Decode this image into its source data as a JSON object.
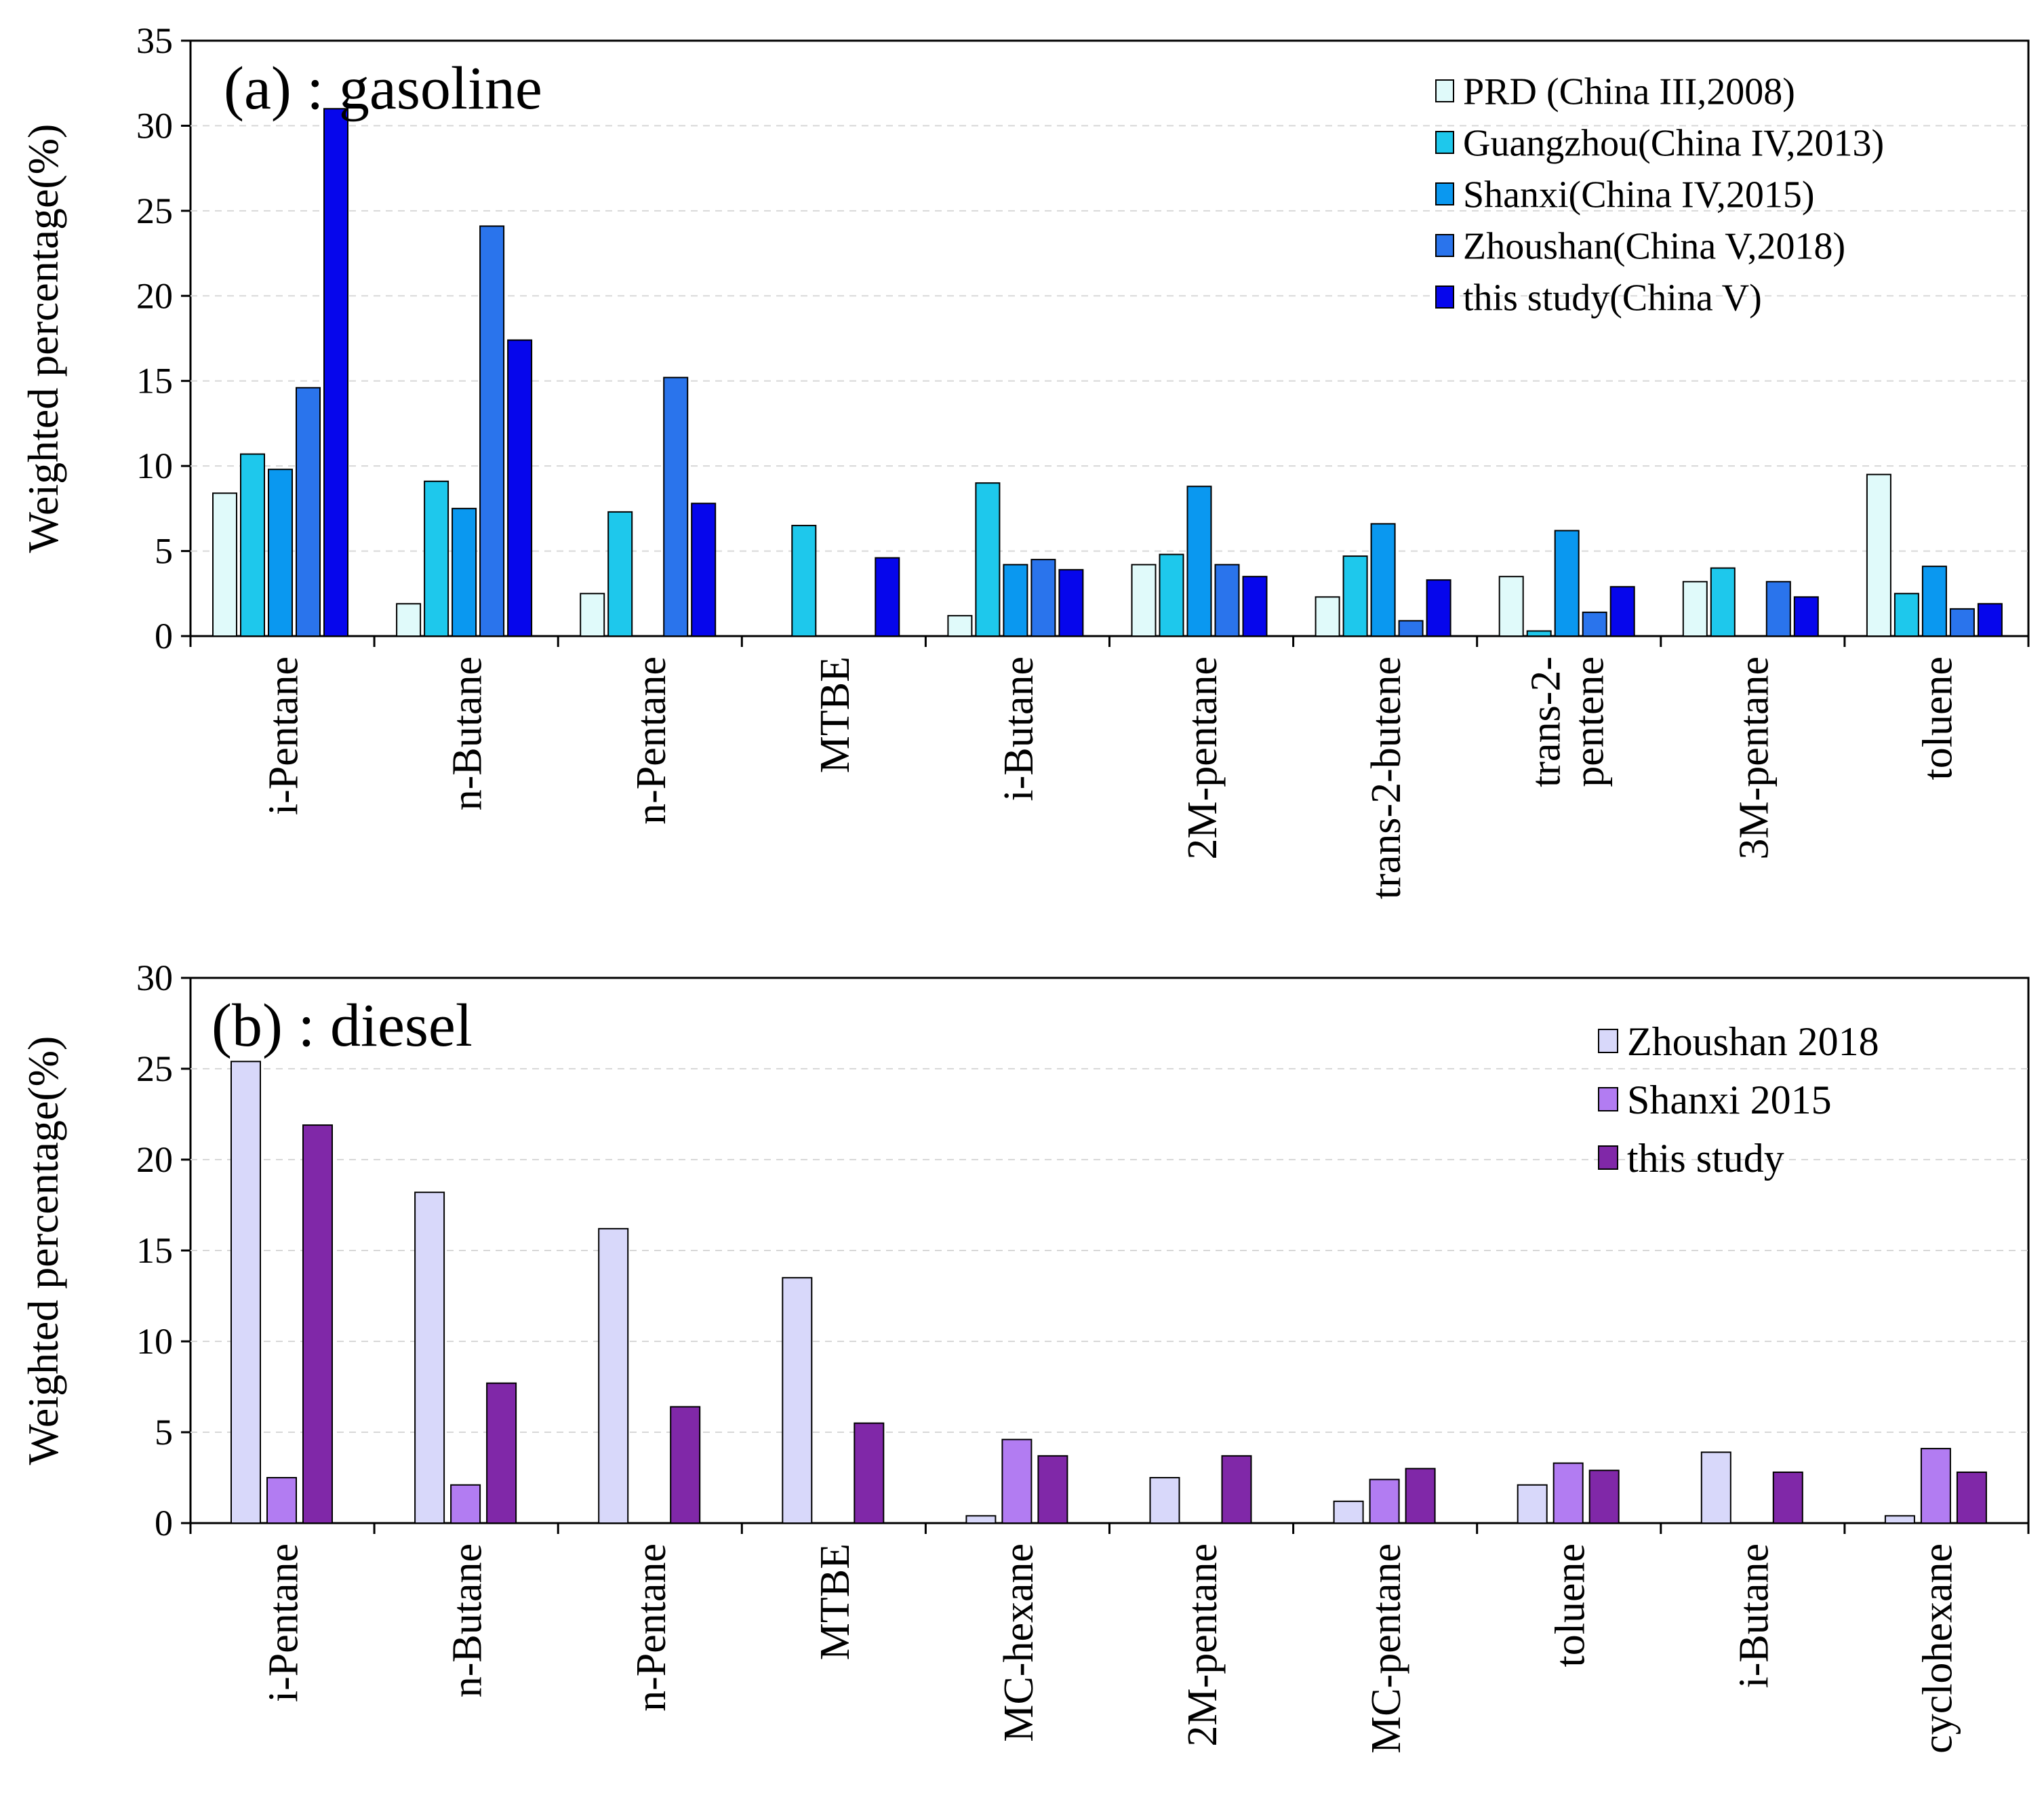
{
  "chart_data": [
    {
      "type": "bar",
      "panel_label": "(a) : gasoline",
      "ylabel": "Weighted percentage(%)",
      "xlabel": "",
      "ylim": [
        0,
        35
      ],
      "yticks": [
        0,
        5,
        10,
        15,
        20,
        25,
        30,
        35
      ],
      "grid": "horizontal-dashed",
      "legend_position": "top-right",
      "categories": [
        "i-Pentane",
        "n-Butane",
        "n-Pentane",
        "MTBE",
        "i-Butane",
        "2M-pentane",
        "trans-2-butene",
        "trans-2-\npentene",
        "3M-pentane",
        "toluene"
      ],
      "series": [
        {
          "name": "PRD (China III,2008)",
          "color": "#e0fafa",
          "values": [
            8.4,
            1.9,
            2.5,
            0,
            1.2,
            4.2,
            2.3,
            3.5,
            3.2,
            9.5
          ]
        },
        {
          "name": "Guangzhou(China IV,2013)",
          "color": "#1ec8ec",
          "values": [
            10.7,
            9.1,
            7.3,
            6.5,
            9.0,
            4.8,
            4.7,
            0.3,
            4.0,
            2.5
          ]
        },
        {
          "name": "Shanxi(China IV,2015)",
          "color": "#0a98f0",
          "values": [
            9.8,
            7.5,
            0,
            0,
            4.2,
            8.8,
            6.6,
            6.2,
            0,
            4.1
          ]
        },
        {
          "name": "Zhoushan(China V,2018)",
          "color": "#2a74ec",
          "values": [
            14.6,
            24.1,
            15.2,
            0,
            4.5,
            4.2,
            0.9,
            1.4,
            3.2,
            1.6
          ]
        },
        {
          "name": "this study(China V)",
          "color": "#0606ec",
          "values": [
            31.0,
            17.4,
            7.8,
            4.6,
            3.9,
            3.5,
            3.3,
            2.9,
            2.3,
            1.9
          ]
        }
      ]
    },
    {
      "type": "bar",
      "panel_label": "(b) : diesel",
      "ylabel": "Weighted percentage(%)",
      "xlabel": "",
      "ylim": [
        0,
        30
      ],
      "yticks": [
        0,
        5,
        10,
        15,
        20,
        25,
        30
      ],
      "grid": "horizontal-dashed",
      "legend_position": "top-right",
      "categories": [
        "i-Pentane",
        "n-Butane",
        "n-Pentane",
        "MTBE",
        "MC-hexane",
        "2M-pentane",
        "MC-pentane",
        "toluene",
        "i-Butane",
        "cyclohexane"
      ],
      "series": [
        {
          "name": "Zhoushan 2018",
          "color": "#d8d8fa",
          "values": [
            25.4,
            18.2,
            16.2,
            13.5,
            0.4,
            2.5,
            1.2,
            2.1,
            3.9,
            0.4
          ]
        },
        {
          "name": "Shanxi 2015",
          "color": "#b27cf2",
          "values": [
            2.5,
            2.1,
            0,
            0,
            4.6,
            0,
            2.4,
            3.3,
            0,
            4.1
          ]
        },
        {
          "name": "this study",
          "color": "#8028a8",
          "values": [
            21.9,
            7.7,
            6.4,
            5.5,
            3.7,
            3.7,
            3.0,
            2.9,
            2.8,
            2.8
          ]
        }
      ]
    }
  ]
}
